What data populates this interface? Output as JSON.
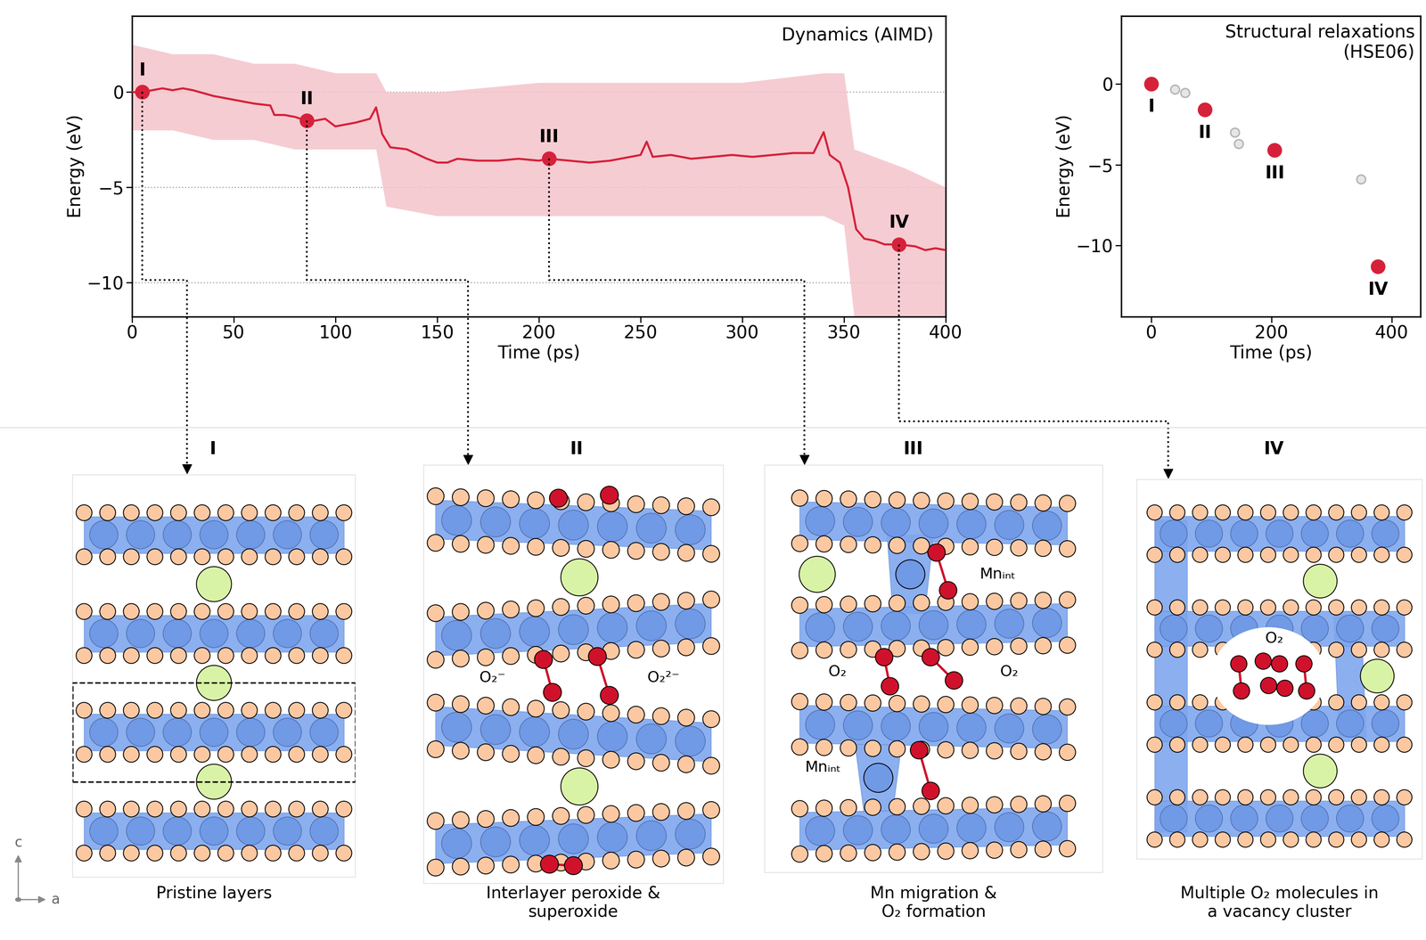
{
  "chart_data": [
    {
      "type": "line",
      "annotation": "Dynamics (AIMD)",
      "x_label": "Time (ps)",
      "y_label": "Energy (eV)",
      "xlim": [
        0,
        400
      ],
      "ylim": [
        -11.8,
        4
      ],
      "xticks": [
        0,
        50,
        100,
        150,
        200,
        250,
        300,
        350,
        400
      ],
      "yticks": [
        {
          "value": -10,
          "label": "−10"
        },
        {
          "value": -5,
          "label": "−5"
        },
        0
      ],
      "grid": true,
      "color": "#d6213a",
      "x": [
        0,
        5,
        10,
        15,
        20,
        25,
        30,
        40,
        50,
        60,
        68,
        70,
        75,
        80,
        86,
        90,
        95,
        100,
        105,
        110,
        117,
        120,
        123,
        127,
        135,
        145,
        150,
        155,
        160,
        170,
        180,
        190,
        200,
        205,
        215,
        225,
        235,
        245,
        250,
        253,
        256,
        265,
        275,
        285,
        295,
        305,
        315,
        325,
        335,
        340,
        343,
        348,
        352,
        356,
        360,
        365,
        370,
        377,
        385,
        390,
        395,
        400
      ],
      "values": [
        0,
        0,
        0.1,
        0.2,
        0.1,
        0.2,
        0.1,
        -0.2,
        -0.4,
        -0.6,
        -0.7,
        -1.2,
        -1.2,
        -1.3,
        -1.5,
        -1.5,
        -1.4,
        -1.8,
        -1.7,
        -1.6,
        -1.4,
        -0.8,
        -2.2,
        -2.9,
        -3.0,
        -3.5,
        -3.7,
        -3.7,
        -3.5,
        -3.6,
        -3.6,
        -3.5,
        -3.6,
        -3.5,
        -3.6,
        -3.7,
        -3.6,
        -3.4,
        -3.3,
        -2.6,
        -3.4,
        -3.3,
        -3.5,
        -3.4,
        -3.3,
        -3.4,
        -3.3,
        -3.2,
        -3.2,
        -2.1,
        -3.3,
        -3.7,
        -5.0,
        -7.2,
        -7.7,
        -7.8,
        -8.0,
        -8.0,
        -8.1,
        -8.3,
        -8.2,
        -8.3
      ],
      "band": {
        "color": "#f4c3cb",
        "x": [
          0,
          20,
          40,
          60,
          80,
          100,
          120,
          125,
          150,
          200,
          250,
          300,
          340,
          350,
          355,
          380,
          400
        ],
        "low": [
          -2,
          -2,
          -2.5,
          -2.5,
          -3,
          -3,
          -3,
          -6,
          -6.5,
          -6.5,
          -6.5,
          -6.5,
          -6.5,
          -7,
          -11.8,
          -11.8,
          -11.8
        ],
        "high": [
          2.5,
          2,
          2,
          1.5,
          1.5,
          1,
          1,
          0,
          0,
          0.5,
          0.5,
          0.5,
          1,
          1,
          -3,
          -4,
          -5
        ]
      },
      "points": {
        "labels": [
          "I",
          "II",
          "III",
          "IV"
        ],
        "x": [
          5,
          86,
          205,
          377
        ],
        "values": [
          0,
          -1.5,
          -3.5,
          -8
        ]
      }
    },
    {
      "type": "scatter",
      "annotation": "Structural relaxations\n(HSE06)",
      "x_label": "Time (ps)",
      "y_label": "Energy (eV)",
      "xlim": [
        -50,
        448
      ],
      "ylim": [
        -14.4,
        4.2
      ],
      "xticks": [
        0,
        200,
        400
      ],
      "yticks": [
        {
          "value": -10,
          "label": "−10"
        },
        {
          "value": -5,
          "label": "−5"
        },
        0
      ],
      "labeled_points": {
        "labels": [
          "I",
          "II",
          "III",
          "IV"
        ],
        "x": [
          0,
          89,
          205,
          377
        ],
        "values": [
          0,
          -1.6,
          -4.1,
          -11.3
        ],
        "color": "#d6213a"
      },
      "other_points": {
        "x": [
          39,
          56,
          139,
          145,
          349
        ],
        "values": [
          -0.35,
          -0.55,
          -3.0,
          -3.7,
          -5.9
        ],
        "color": "#b5b5b5"
      }
    }
  ],
  "panels": [
    {
      "label": "I",
      "caption": "Pristine layers",
      "texts": []
    },
    {
      "label": "II",
      "caption": "Interlayer peroxide &\nsuperoxide",
      "texts": [
        "O₂⁻",
        "O₂²⁻"
      ]
    },
    {
      "label": "III",
      "caption": "Mn migration &\nO₂ formation",
      "texts": [
        "Mnᵢₙₜ",
        "O₂",
        "O₂",
        "Mnᵢₙₜ"
      ]
    },
    {
      "label": "IV",
      "caption": "Multiple O₂ molecules in\na vacancy cluster",
      "texts": [
        "O₂"
      ]
    }
  ],
  "axes_indicator": [
    "c",
    "a"
  ]
}
